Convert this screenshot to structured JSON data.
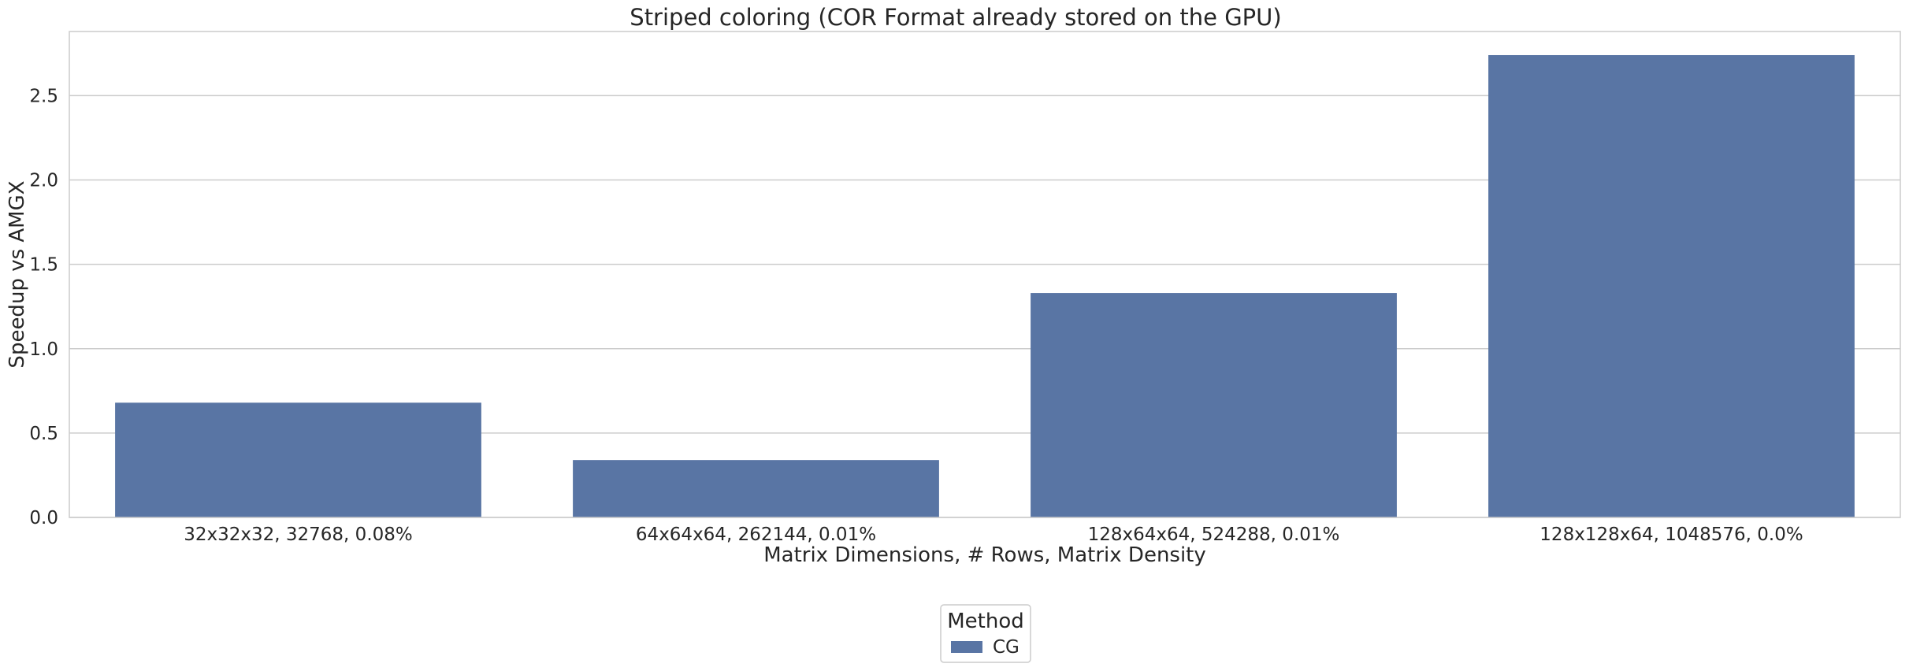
{
  "chart_data": {
    "type": "bar",
    "title": "Striped coloring (COR Format already stored on the GPU)",
    "xlabel": "Matrix Dimensions, # Rows, Matrix Density",
    "ylabel": "Speedup vs AMGX",
    "categories": [
      "32x32x32, 32768, 0.08%",
      "64x64x64, 262144, 0.01%",
      "128x64x64, 524288, 0.01%",
      "128x128x64, 1048576, 0.0%"
    ],
    "series": [
      {
        "name": "CG",
        "values": [
          0.68,
          0.34,
          1.33,
          2.74
        ]
      }
    ],
    "ylim": [
      0,
      2.88
    ],
    "yticks": [
      0.0,
      0.5,
      1.0,
      1.5,
      2.0,
      2.5
    ],
    "ytick_labels": [
      "0.0",
      "0.5",
      "1.0",
      "1.5",
      "2.0",
      "2.5"
    ],
    "grid": true,
    "legend": {
      "title": "Method",
      "position": "bottom-center"
    },
    "colors": {
      "CG": "#5975a4",
      "grid": "#cccccc",
      "frame": "#cccccc"
    }
  }
}
